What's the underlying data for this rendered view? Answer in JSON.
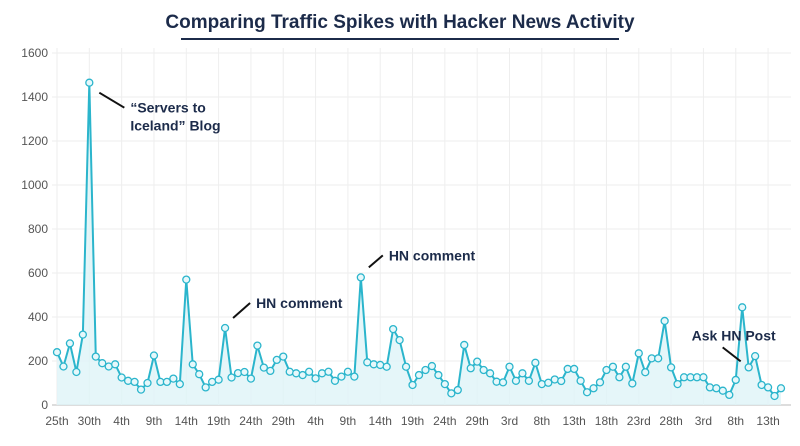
{
  "title": "Comparing Traffic Spikes with Hacker News Activity",
  "chart_data": {
    "type": "area",
    "title": "Comparing Traffic Spikes with Hacker News Activity",
    "xlabel": "",
    "ylabel": "",
    "ylim": [
      0,
      1600
    ],
    "yticks": [
      0,
      200,
      400,
      600,
      800,
      1000,
      1200,
      1400,
      1600
    ],
    "xtick_labels": [
      "25th",
      "30th",
      "4th",
      "9th",
      "14th",
      "19th",
      "24th",
      "29th",
      "4th",
      "9th",
      "14th",
      "19th",
      "24th",
      "29th",
      "3rd",
      "8th",
      "13th",
      "18th",
      "23rd",
      "28th",
      "3rd",
      "8th",
      "13th"
    ],
    "xtick_every_points": 5,
    "grid": true,
    "colors": {
      "line": "#2bb5cc",
      "fill": "#dff4f8",
      "text": "#1c2b4a"
    },
    "values": [
      240,
      175,
      280,
      150,
      320,
      1465,
      220,
      190,
      175,
      185,
      125,
      110,
      105,
      70,
      100,
      225,
      105,
      105,
      120,
      95,
      570,
      185,
      140,
      80,
      105,
      115,
      350,
      125,
      145,
      150,
      120,
      270,
      170,
      155,
      205,
      220,
      151,
      144,
      136,
      151,
      121,
      144,
      151,
      110,
      129,
      151,
      129,
      580,
      194,
      185,
      182,
      174,
      345,
      295,
      174,
      91,
      136,
      159,
      177,
      136,
      95,
      53,
      68,
      273,
      167,
      197,
      159,
      144,
      106,
      103,
      174,
      110,
      144,
      110,
      192,
      95,
      101,
      116,
      109,
      164,
      164,
      110,
      58,
      76,
      103,
      159,
      174,
      126,
      174,
      98,
      235,
      149,
      212,
      212,
      382,
      171,
      95,
      126,
      126,
      126,
      126,
      80,
      76,
      65,
      46,
      114,
      444,
      171,
      222,
      91,
      80,
      41,
      76
    ],
    "annotations": [
      {
        "point_index": 5,
        "lines": [
          "“Servers to",
          "Iceland” Blog"
        ]
      },
      {
        "point_index": 26,
        "lines": [
          "HN comment"
        ]
      },
      {
        "point_index": 47,
        "lines": [
          "HN comment"
        ]
      },
      {
        "point_index": 107,
        "lines": [
          "Ask HN Post"
        ]
      }
    ]
  }
}
